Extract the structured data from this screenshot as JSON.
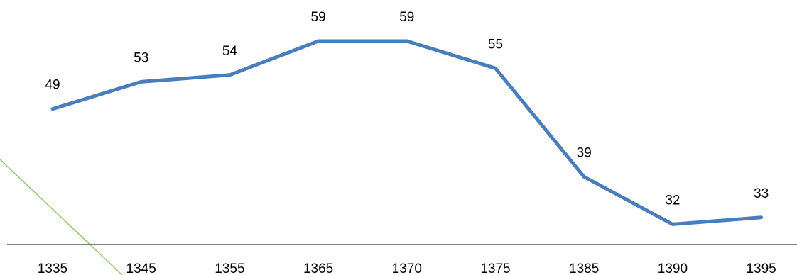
{
  "chart_data": {
    "type": "line",
    "categories": [
      "1335",
      "1345",
      "1355",
      "1365",
      "1370",
      "1375",
      "1385",
      "1390",
      "1395"
    ],
    "series": [
      {
        "values": [
          49,
          53,
          54,
          59,
          59,
          55,
          39,
          32,
          33
        ]
      }
    ],
    "data_labels": [
      "49",
      "53",
      "54",
      "59",
      "59",
      "55",
      "39",
      "32",
      "33"
    ],
    "title": "",
    "xlabel": "",
    "ylabel": "",
    "grid": false,
    "legend": "none",
    "colors": {
      "series_line": "#4a7ebb",
      "axis": "#7f7f7f",
      "stray_line": "#8fc96b"
    }
  }
}
